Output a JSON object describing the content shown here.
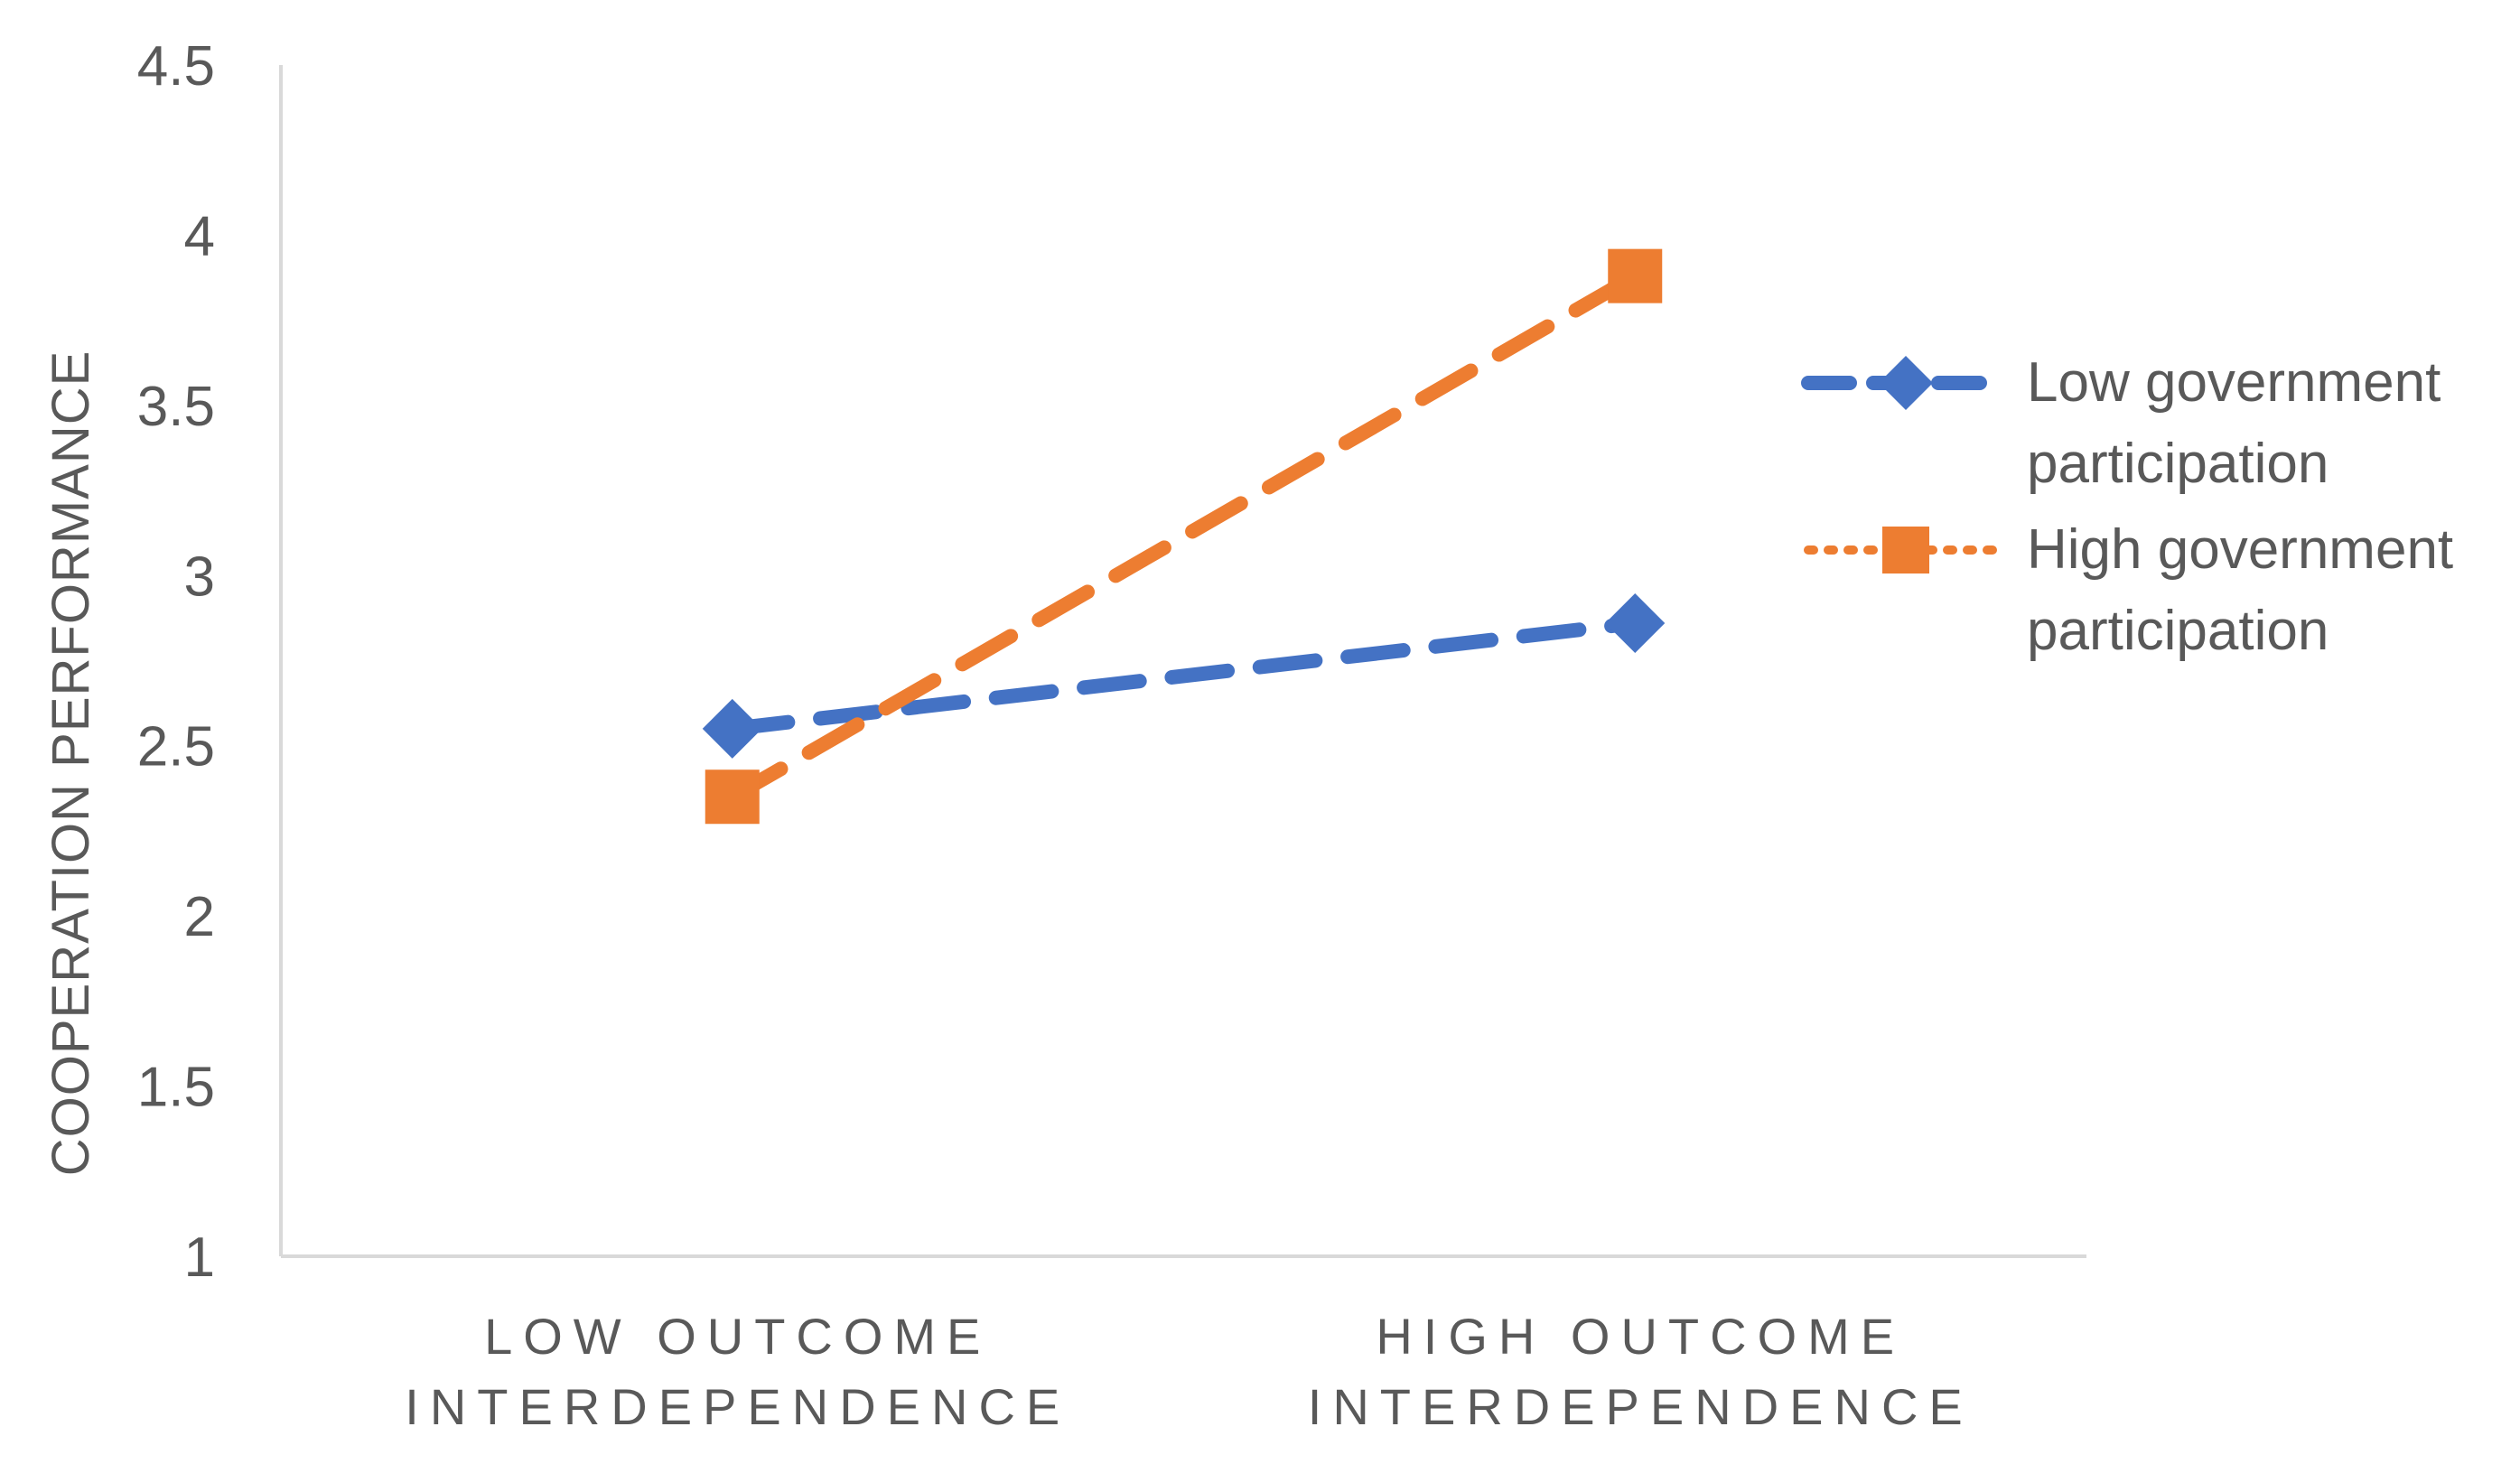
{
  "chart_data": {
    "type": "line",
    "title": "",
    "xlabel": "",
    "ylabel": "COOPERATION   PERFORMANCE",
    "ylim": [
      1,
      4.5
    ],
    "yticks": [
      "1",
      "1.5",
      "2",
      "2.5",
      "3",
      "3.5",
      "4",
      "4.5"
    ],
    "yticks_values": [
      1,
      1.5,
      2,
      2.5,
      3,
      3.5,
      4,
      4.5
    ],
    "categories": [
      [
        "LOW OUTCOME",
        "INTERDEPENDENCE"
      ],
      [
        "HIGH OUTCOME",
        "INTERDEPENDENCE"
      ]
    ],
    "grid": false,
    "legend_position": "right",
    "series": [
      {
        "name": [
          "Low government",
          "participation"
        ],
        "values": [
          2.55,
          2.86
        ],
        "color": "#4472C4",
        "marker": "diamond",
        "line_style": "dashed"
      },
      {
        "name": [
          "High government",
          "participation"
        ],
        "values": [
          2.35,
          3.88
        ],
        "color": "#ED7D31",
        "marker": "square",
        "line_style": "dashed",
        "legend_line_style": "dotted"
      }
    ]
  }
}
